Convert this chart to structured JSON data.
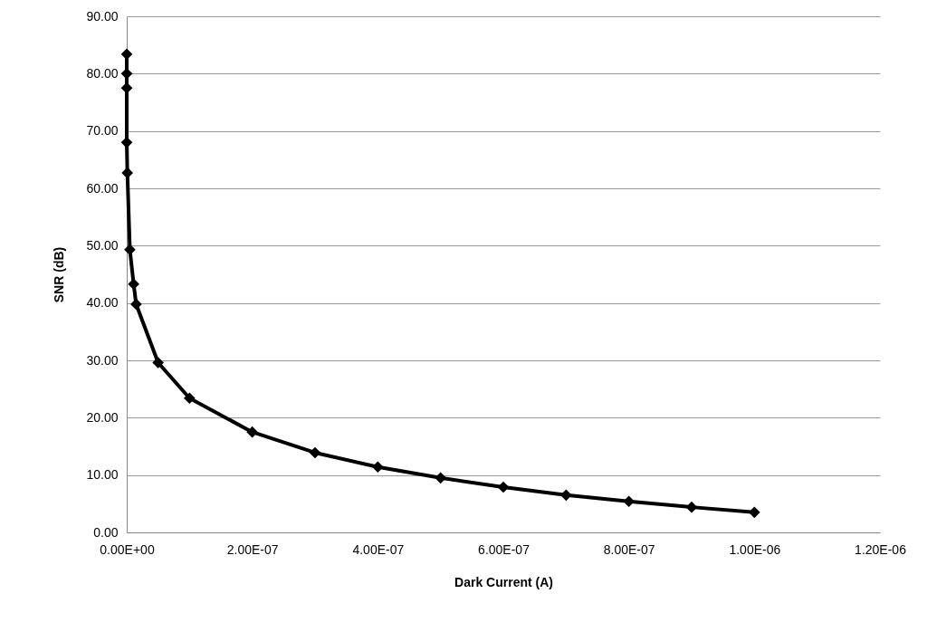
{
  "chart_data": {
    "type": "line",
    "xlabel": "Dark Current (A)",
    "ylabel": "SNR (dB)",
    "x": [
      0,
      0,
      0,
      0,
      1e-09,
      5e-09,
      1.1e-08,
      1.5e-08,
      5e-08,
      1e-07,
      2e-07,
      3e-07,
      4e-07,
      5e-07,
      6e-07,
      7e-07,
      8e-07,
      9e-07,
      1e-06
    ],
    "series": [
      {
        "color": "#000000",
        "values": [
          83.4,
          80.0,
          77.5,
          68.0,
          62.7,
          49.3,
          43.3,
          39.8,
          29.6,
          23.4,
          17.5,
          13.9,
          11.4,
          9.5,
          7.9,
          6.5,
          5.4,
          4.4,
          3.5
        ]
      }
    ],
    "xlim": [
      0,
      1.2e-06
    ],
    "xticks": [
      {
        "value": 0,
        "label": "0.00E+00"
      },
      {
        "value": 2e-07,
        "label": "2.00E-07"
      },
      {
        "value": 4e-07,
        "label": "4.00E-07"
      },
      {
        "value": 6e-07,
        "label": "6.00E-07"
      },
      {
        "value": 8e-07,
        "label": "8.00E-07"
      },
      {
        "value": 1e-06,
        "label": "1.00E-06"
      },
      {
        "value": 1.2e-06,
        "label": "1.20E-06"
      }
    ],
    "ylim": [
      0,
      90
    ],
    "yticks": [
      {
        "value": 0,
        "label": "0.00"
      },
      {
        "value": 10,
        "label": "10.00"
      },
      {
        "value": 20,
        "label": "20.00"
      },
      {
        "value": 30,
        "label": "30.00"
      },
      {
        "value": 40,
        "label": "40.00"
      },
      {
        "value": 50,
        "label": "50.00"
      },
      {
        "value": 60,
        "label": "60.00"
      },
      {
        "value": 70,
        "label": "70.00"
      },
      {
        "value": 80,
        "label": "80.00"
      },
      {
        "value": 90,
        "label": "90.00"
      }
    ],
    "grid": "y",
    "marker": "diamond",
    "line_style": "solid"
  }
}
